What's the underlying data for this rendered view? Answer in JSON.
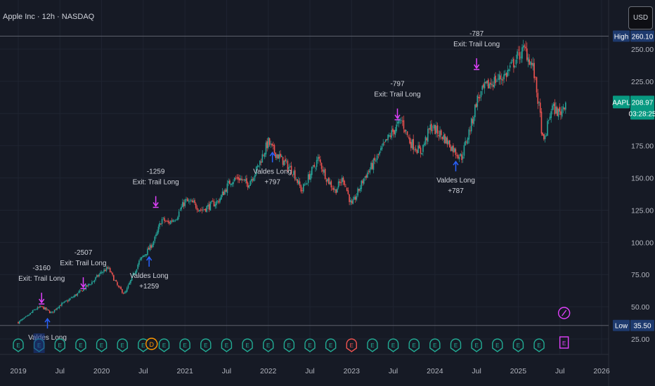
{
  "header": {
    "symbol_title": "Apple Inc · 12h · NASDAQ",
    "currency_button": "USD"
  },
  "price_axis": {
    "ticks": [
      "250.00",
      "225.00",
      "200.00",
      "175.00",
      "150.00",
      "125.00",
      "100.00",
      "75.00",
      "50.00",
      "25.00"
    ]
  },
  "time_axis": {
    "ticks": [
      "2019",
      "Jul",
      "2020",
      "Jul",
      "2021",
      "Jul",
      "2022",
      "Jul",
      "2023",
      "Jul",
      "2024",
      "Jul",
      "2025",
      "Jul",
      "2026"
    ]
  },
  "labels": {
    "high_tag": "High",
    "high_value": "260.10",
    "low_tag": "Low",
    "low_value": "35.50",
    "symbol_tag": "AAPL",
    "last_price": "208.97",
    "countdown": "03:28:25"
  },
  "colors": {
    "background": "#161a25",
    "up_candle": "#26a69a",
    "down_candle": "#ef5350",
    "long_entry": "#2962ff",
    "trail_exit": "#e040fb",
    "earnings_icon": "#22ab94",
    "dividend_icon": "#ff9800",
    "last_price_tag": "#089981",
    "high_low_tag": "#1e3a6e"
  },
  "chart_data": {
    "type": "candlestick",
    "title": "Apple Inc · 12h · NASDAQ",
    "xlabel": "",
    "ylabel": "",
    "ylim": [
      20,
      270
    ],
    "price_path": {
      "t": [
        2019.0,
        2019.1,
        2019.2,
        2019.28,
        2019.4,
        2019.47,
        2019.6,
        2019.75,
        2019.9,
        2020.0,
        2020.08,
        2020.2,
        2020.28,
        2020.45,
        2020.58,
        2020.65,
        2020.72,
        2020.8,
        2020.9,
        2021.0,
        2021.1,
        2021.2,
        2021.4,
        2021.55,
        2021.65,
        2021.75,
        2021.85,
        2022.0,
        2022.05,
        2022.15,
        2022.3,
        2022.4,
        2022.6,
        2022.7,
        2022.8,
        2022.9,
        2023.0,
        2023.15,
        2023.3,
        2023.45,
        2023.6,
        2023.7,
        2023.83,
        2023.95,
        2024.1,
        2024.25,
        2024.32,
        2024.45,
        2024.5,
        2024.6,
        2024.7,
        2024.85,
        2025.0,
        2025.08,
        2025.18,
        2025.26,
        2025.3,
        2025.4,
        2025.5,
        2025.57
      ],
      "close": [
        38,
        42,
        48,
        50,
        45,
        50,
        55,
        62,
        70,
        77,
        80,
        65,
        60,
        85,
        96,
        104,
        118,
        115,
        120,
        132,
        130,
        125,
        132,
        148,
        150,
        145,
        155,
        178,
        172,
        165,
        155,
        140,
        165,
        150,
        140,
        150,
        128,
        150,
        165,
        182,
        195,
        178,
        170,
        190,
        182,
        170,
        166,
        195,
        210,
        220,
        225,
        230,
        245,
        250,
        235,
        200,
        175,
        205,
        200,
        210
      ]
    },
    "price_high": 260.1,
    "price_low": 35.5,
    "last_price": 208.97,
    "x_axis_ticks": [
      "2019",
      "Jul",
      "2020",
      "Jul",
      "2021",
      "Jul",
      "2022",
      "Jul",
      "2023",
      "Jul",
      "2024",
      "Jul",
      "2025",
      "Jul",
      "2026"
    ],
    "y_axis_ticks": [
      250,
      225,
      200,
      175,
      150,
      125,
      100,
      75,
      50,
      25
    ],
    "grid": true,
    "trades": [
      {
        "entry": {
          "t": 2019.35,
          "price": 44,
          "label": "Valdes Long"
        },
        "exit": {
          "t": 2019.28,
          "price": 50,
          "lines": [
            "-3160",
            "Exit: Trail Long"
          ]
        }
      },
      {
        "exit": {
          "t": 2019.78,
          "price": 62,
          "lines": [
            "-2507",
            "Exit: Trail Long"
          ]
        }
      },
      {
        "entry": {
          "t": 2020.57,
          "price": 92,
          "lines": [
            "Valdes Long",
            "+1259"
          ]
        },
        "exit": {
          "t": 2020.65,
          "price": 125,
          "lines": [
            "-1259",
            "Exit: Trail Long"
          ]
        }
      },
      {
        "entry": {
          "t": 2022.05,
          "price": 173,
          "lines": [
            "Valdes Long",
            "+797"
          ]
        },
        "exit": {
          "t": 2023.55,
          "price": 193,
          "lines": [
            "-797",
            "Exit: Trail Long"
          ]
        }
      },
      {
        "entry": {
          "t": 2024.25,
          "price": 166,
          "lines": [
            "Valdes Long",
            "+787"
          ]
        },
        "exit": {
          "t": 2024.5,
          "price": 232,
          "lines": [
            "-787",
            "Exit: Trail Long"
          ]
        }
      }
    ],
    "events": {
      "earnings_t": [
        2019.0,
        2019.25,
        2019.5,
        2019.75,
        2020.0,
        2020.25,
        2020.5,
        2020.75,
        2021.0,
        2021.25,
        2021.5,
        2021.75,
        2022.0,
        2022.25,
        2022.5,
        2022.75,
        2023.25,
        2023.5,
        2023.75,
        2024.0,
        2024.25,
        2024.5,
        2024.75,
        2025.0,
        2025.25
      ],
      "earnings_highlight_t": [
        2019.25
      ],
      "earnings_red_t": [
        2023.0
      ],
      "dividend_t": [
        2020.6
      ],
      "split_t": [
        2025.55
      ]
    }
  }
}
